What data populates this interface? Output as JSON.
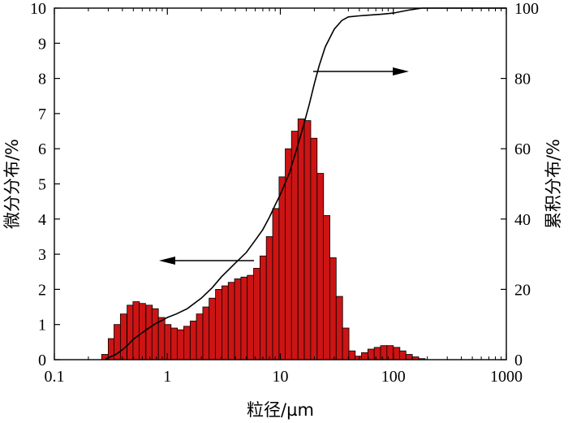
{
  "chart_data": {
    "type": "bar",
    "xlabel": "粒径/µm",
    "ylabel_left": "微分分布/%",
    "ylabel_right": "累积分布/%",
    "xscale": "log",
    "xlim": [
      0.1,
      1000
    ],
    "ylim_left": [
      0,
      10
    ],
    "ylim_right": [
      0,
      100
    ],
    "x_ticks": [
      "0.1",
      "1",
      "10",
      "100",
      "1000"
    ],
    "y_ticks_left": [
      "0",
      "1",
      "2",
      "3",
      "4",
      "5",
      "6",
      "7",
      "8",
      "9",
      "10"
    ],
    "y_ticks_right": [
      "0",
      "20",
      "40",
      "60",
      "80",
      "100"
    ],
    "colors": {
      "bar": "#cc1414",
      "line": "#000000"
    },
    "series": [
      {
        "type": "bar",
        "axis": "left",
        "x": [
          0.28,
          0.32,
          0.36,
          0.41,
          0.47,
          0.53,
          0.6,
          0.69,
          0.78,
          0.89,
          1.01,
          1.15,
          1.31,
          1.49,
          1.7,
          1.93,
          2.2,
          2.5,
          2.85,
          3.24,
          3.69,
          4.2,
          4.78,
          5.44,
          6.19,
          7.05,
          8.02,
          9.13,
          10.4,
          11.8,
          13.4,
          15.3,
          17.4,
          19.8,
          22.6,
          25.7,
          29.2,
          33.3,
          37.9,
          43.1,
          49.0,
          55.8,
          63.5,
          72.3,
          82.3,
          93.7,
          107,
          121,
          138,
          157,
          179
        ],
        "values": [
          0.15,
          0.6,
          1.0,
          1.3,
          1.55,
          1.65,
          1.6,
          1.55,
          1.45,
          1.2,
          1.0,
          0.9,
          0.85,
          0.95,
          1.1,
          1.3,
          1.5,
          1.75,
          2.0,
          2.1,
          2.2,
          2.3,
          2.35,
          2.4,
          2.6,
          2.95,
          3.5,
          4.3,
          5.2,
          6.0,
          6.5,
          6.85,
          6.8,
          6.3,
          5.3,
          4.1,
          2.9,
          1.8,
          0.9,
          0.25,
          0.1,
          0.2,
          0.3,
          0.35,
          0.4,
          0.4,
          0.35,
          0.25,
          0.15,
          0.08,
          0.03
        ]
      },
      {
        "type": "line",
        "axis": "right",
        "x": [
          0.28,
          0.3,
          0.35,
          0.4,
          0.45,
          0.5,
          0.6,
          0.7,
          0.8,
          0.9,
          1.0,
          1.2,
          1.5,
          2.0,
          2.5,
          3.0,
          4.0,
          5.0,
          6.0,
          7.0,
          8.0,
          9.0,
          10,
          12,
          14,
          16,
          18,
          20,
          22,
          25,
          30,
          35,
          40,
          50,
          60,
          80,
          100,
          130,
          160,
          180,
          1000
        ],
        "values": [
          0,
          0.5,
          1.5,
          2.8,
          4.3,
          5.8,
          7.7,
          9.2,
          10.4,
          11.2,
          12,
          13,
          14.5,
          17.5,
          20.5,
          23.5,
          27.5,
          30.5,
          34,
          37,
          40.5,
          44,
          47,
          53,
          60,
          66.5,
          72.5,
          78.5,
          83.5,
          89,
          94,
          96.5,
          97.5,
          97.8,
          98,
          98.3,
          98.6,
          99.3,
          99.8,
          100,
          100
        ]
      }
    ]
  }
}
